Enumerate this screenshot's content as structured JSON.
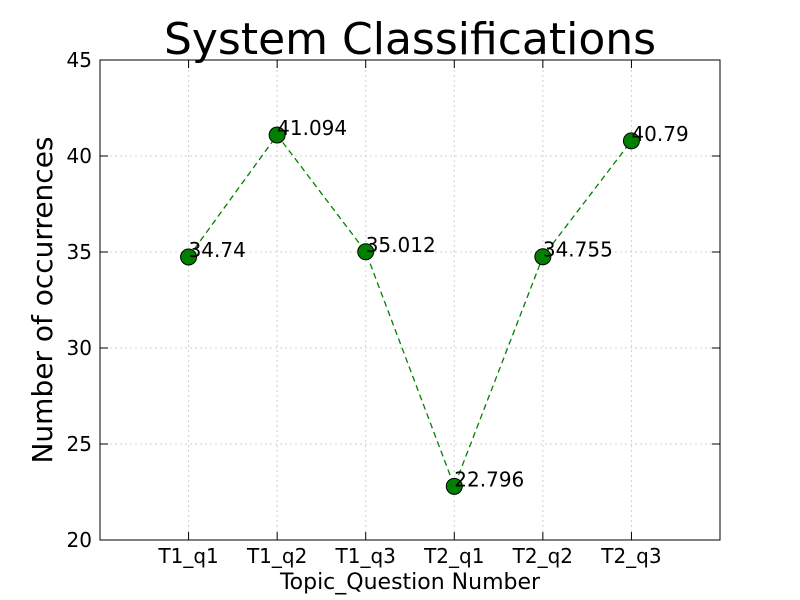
{
  "chart_data": {
    "type": "line",
    "title": "System Classifications",
    "xlabel": "Topic_Question Number",
    "ylabel": "Number of occurrences",
    "categories": [
      "T1_q1",
      "T1_q2",
      "T1_q3",
      "T2_q1",
      "T2_q2",
      "T2_q3"
    ],
    "values": [
      34.74,
      41.094,
      35.012,
      22.796,
      34.755,
      40.79
    ],
    "data_labels": [
      "34.74",
      "41.094",
      "35.012",
      "22.796",
      "34.755",
      "40.79"
    ],
    "ylim": [
      20,
      45
    ],
    "yticks": [
      20,
      25,
      30,
      35,
      40,
      45
    ],
    "grid": true,
    "line_style": "dashed",
    "line_color": "#008000",
    "marker_color": "#008000"
  }
}
